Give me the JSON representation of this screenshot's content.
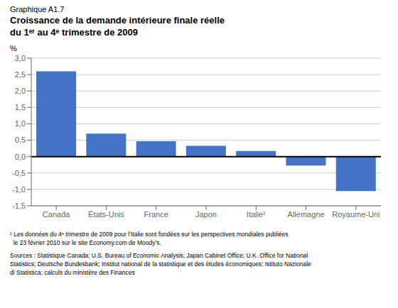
{
  "chart_data": {
    "type": "bar",
    "subtitle": "Graphique A1.7",
    "title": "Croissance de la demande intérieure finale réelle\ndu 1ᵉʳ au 4ᵉ trimestre de 2009",
    "ylabel": "%",
    "categories": [
      "Canada",
      "États-Unis",
      "France",
      "Japon",
      "Italie¹",
      "Allemagne",
      "Royaume-Uni"
    ],
    "values": [
      2.6,
      0.7,
      0.47,
      0.33,
      0.17,
      -0.27,
      -1.05
    ],
    "color": "#4472C4",
    "ylim": [
      -1.5,
      3.0
    ],
    "yticks": [
      {
        "value": -1.5,
        "label": "-1,5"
      },
      {
        "value": -1.0,
        "label": "-1,0"
      },
      {
        "value": -0.5,
        "label": "-0,5"
      },
      {
        "value": 0.0,
        "label": "0,0"
      },
      {
        "value": 0.5,
        "label": "0,5"
      },
      {
        "value": 1.0,
        "label": "1,0"
      },
      {
        "value": 1.5,
        "label": "1,5"
      },
      {
        "value": 2.0,
        "label": "2,0"
      },
      {
        "value": 2.5,
        "label": "2,5"
      },
      {
        "value": 3.0,
        "label": "3,0"
      }
    ],
    "grid": true,
    "annotations": [
      "¹ Les données du 4ᵉ trimestre de 2009 pour l’Italie sont fondées sur les perspectives mondiales publiées\n  le 23 février 2010 sur le site Economy.com de Moody’s.",
      "Sources : Statistique Canada; U.S. Bureau of Economic Analysis; Japan Cabinet Office; U.K. Office for National\nStatistics; Deutsche Bundesbank; Institut national de la statistique et des études économiques; Istituto Nazionale\ndi Statistica; calculs du ministère des Finances"
    ]
  }
}
